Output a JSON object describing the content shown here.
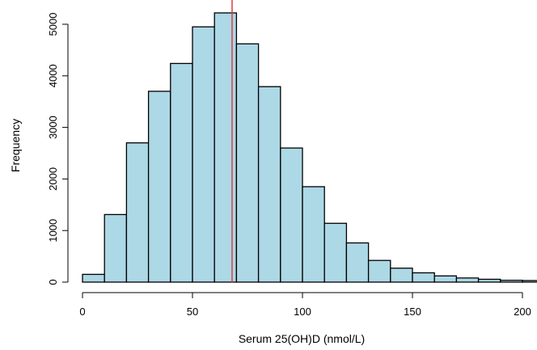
{
  "chart_data": {
    "type": "histogram",
    "title": "",
    "xlabel": "Serum 25(OH)D (nmol/L)",
    "ylabel": "Frequency",
    "bin_edges": [
      0,
      10,
      20,
      30,
      40,
      50,
      60,
      70,
      80,
      90,
      100,
      110,
      120,
      130,
      140,
      150,
      160,
      170,
      180,
      190,
      200,
      210
    ],
    "values": [
      150,
      1310,
      2700,
      3700,
      4240,
      4950,
      5220,
      4620,
      3790,
      2600,
      1850,
      1140,
      760,
      420,
      270,
      180,
      120,
      80,
      55,
      35,
      30
    ],
    "xlim": [
      0,
      210
    ],
    "ylim": [
      0,
      5300
    ],
    "x_ticks": [
      0,
      50,
      100,
      150,
      200
    ],
    "y_ticks": [
      0,
      1000,
      2000,
      3000,
      4000,
      5000
    ],
    "reference_line": {
      "x": 68,
      "color": "#e03c3c"
    },
    "bar_color": "#add8e6",
    "bar_edge_color": "#000000",
    "grid": false,
    "legend": "none"
  }
}
